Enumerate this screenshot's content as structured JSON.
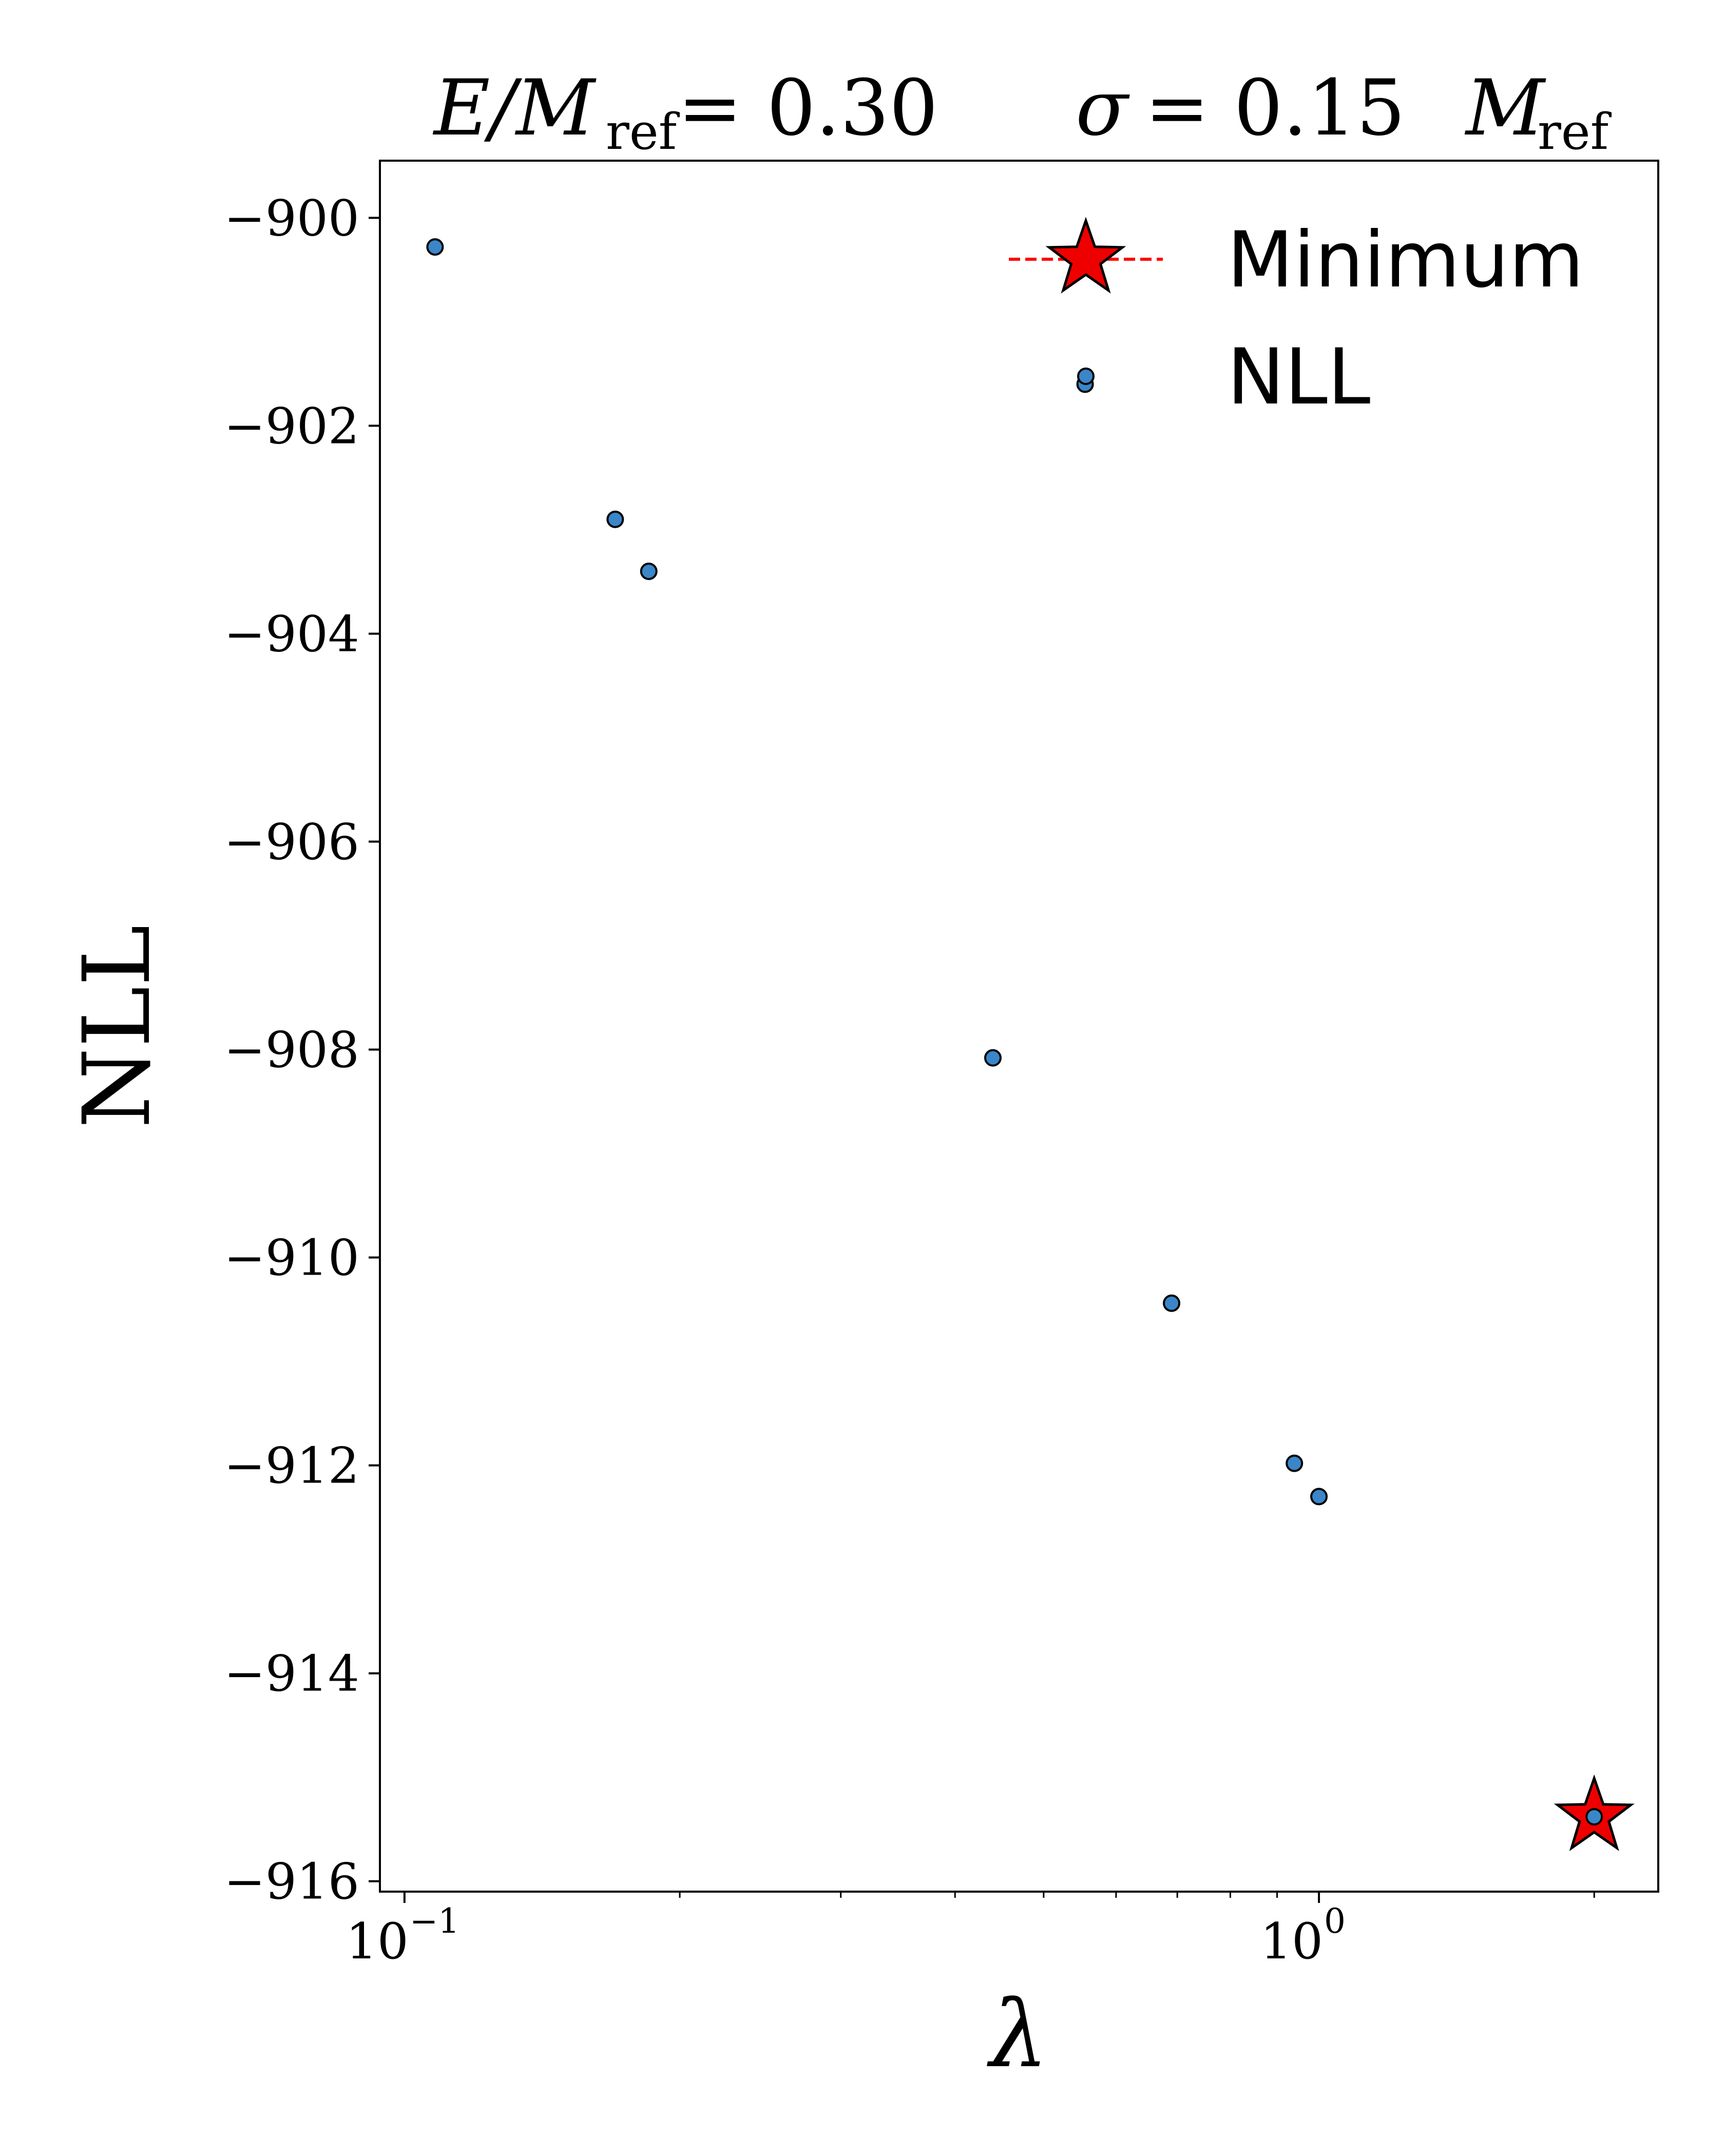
{
  "title": {
    "left_math": "E/M",
    "left_sub": "ref",
    "left_rest": "= 0.30",
    "right_math": "σ",
    "right_rest": "= 0.15",
    "right_unit": "M",
    "right_unit_sub": "ref"
  },
  "chart_data": {
    "type": "scatter",
    "xscale": "log",
    "xlim": [
      0.094,
      2.35
    ],
    "ylim": [
      -916.1,
      -899.45
    ],
    "xlabel": "λ",
    "ylabel": "NLL",
    "grid": false,
    "legend_position": "upper-right",
    "yticks": [
      -900,
      -902,
      -904,
      -906,
      -908,
      -910,
      -912,
      -914,
      -916
    ],
    "ytick_labels": [
      "−900",
      "−902",
      "−904",
      "−906",
      "−908",
      "−910",
      "−912",
      "−914",
      "−916"
    ],
    "xticks_major": [
      {
        "value": 0.1,
        "base": "10",
        "exp": "−1"
      },
      {
        "value": 1,
        "base": "10",
        "exp": "0"
      }
    ],
    "series": [
      {
        "name": "NLL",
        "marker": "circle",
        "color": "#3a86c8",
        "points": [
          {
            "x": 0.108,
            "y": -900.28
          },
          {
            "x": 0.17,
            "y": -902.9
          },
          {
            "x": 0.185,
            "y": -903.4
          },
          {
            "x": 0.44,
            "y": -908.08
          },
          {
            "x": 0.555,
            "y": -901.6
          },
          {
            "x": 0.69,
            "y": -910.44
          },
          {
            "x": 0.94,
            "y": -911.98
          },
          {
            "x": 1.0,
            "y": -912.3
          },
          {
            "x": 2.0,
            "y": -915.38
          }
        ]
      },
      {
        "name": "Minimum",
        "marker": "star",
        "color": "#ee0000",
        "line_color": "#ff0000",
        "points": [
          {
            "x": 2.0,
            "y": -915.38
          }
        ]
      }
    ]
  },
  "legend": {
    "items": [
      {
        "label": "Minimum",
        "marker": "star"
      },
      {
        "label": "NLL",
        "marker": "circle"
      }
    ]
  }
}
